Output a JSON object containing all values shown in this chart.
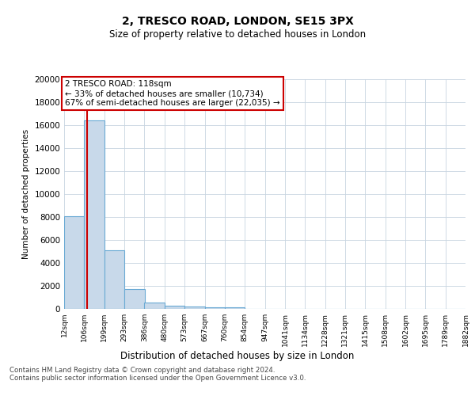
{
  "title1": "2, TRESCO ROAD, LONDON, SE15 3PX",
  "title2": "Size of property relative to detached houses in London",
  "xlabel": "Distribution of detached houses by size in London",
  "ylabel": "Number of detached properties",
  "annotation_title": "2 TRESCO ROAD: 118sqm",
  "annotation_line1": "← 33% of detached houses are smaller (10,734)",
  "annotation_line2": "67% of semi-detached houses are larger (22,035) →",
  "property_size": 118,
  "footer1": "Contains HM Land Registry data © Crown copyright and database right 2024.",
  "footer2": "Contains public sector information licensed under the Open Government Licence v3.0.",
  "bar_color": "#c8d9ea",
  "bar_edge_color": "#6aaad4",
  "vline_color": "#cc0000",
  "annotation_box_color": "#cc0000",
  "background_color": "#ffffff",
  "grid_color": "#c8d4e0",
  "bin_labels": [
    "12sqm",
    "106sqm",
    "199sqm",
    "293sqm",
    "386sqm",
    "480sqm",
    "573sqm",
    "667sqm",
    "760sqm",
    "854sqm",
    "947sqm",
    "1041sqm",
    "1134sqm",
    "1228sqm",
    "1321sqm",
    "1415sqm",
    "1508sqm",
    "1602sqm",
    "1695sqm",
    "1789sqm",
    "1882sqm"
  ],
  "bin_edges": [
    12,
    106,
    199,
    293,
    386,
    480,
    573,
    667,
    760,
    854,
    947,
    1041,
    1134,
    1228,
    1321,
    1415,
    1508,
    1602,
    1695,
    1789,
    1882
  ],
  "bar_heights": [
    8050,
    16400,
    5100,
    1750,
    520,
    310,
    205,
    155,
    130,
    0,
    0,
    0,
    0,
    0,
    0,
    0,
    0,
    0,
    0,
    0
  ],
  "ylim": [
    0,
    20000
  ],
  "yticks": [
    0,
    2000,
    4000,
    6000,
    8000,
    10000,
    12000,
    14000,
    16000,
    18000,
    20000
  ]
}
